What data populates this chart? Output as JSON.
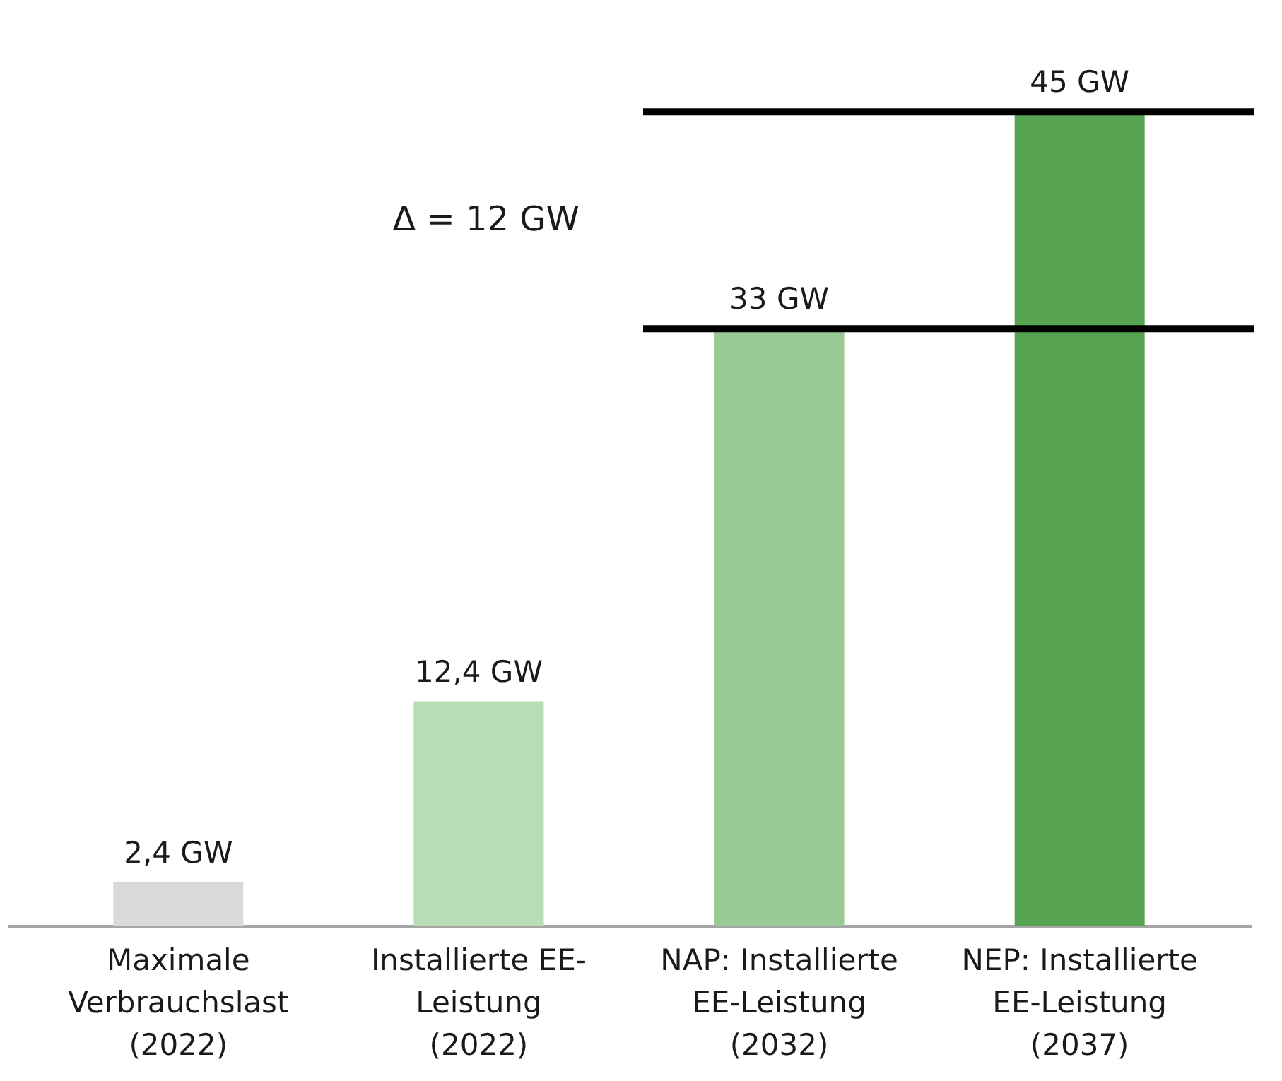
{
  "chart_data": {
    "type": "bar",
    "categories": [
      "Maximale\nVerbrauchslast\n(2022)",
      "Installierte EE-\nLeistung\n(2022)",
      "NAP: Installierte\nEE-Leistung\n(2032)",
      "NEP: Installierte\nEE-Leistung\n(2037)"
    ],
    "values": [
      2.4,
      12.4,
      33,
      45
    ],
    "colors": [
      "#d9d9d9",
      "#b8dcb6",
      "#99ca96",
      "#56a352"
    ],
    "value_labels": [
      "2,4 GW",
      "12,4 GW",
      "33 GW",
      "45 GW"
    ],
    "ref_lines": [
      {
        "axis": "y",
        "value": 33,
        "color": "#000000"
      },
      {
        "axis": "y",
        "value": 45,
        "color": "#000000"
      }
    ],
    "annotations": [
      "Δ = 12 GW"
    ],
    "grid": false,
    "tick_labels": "x"
  }
}
